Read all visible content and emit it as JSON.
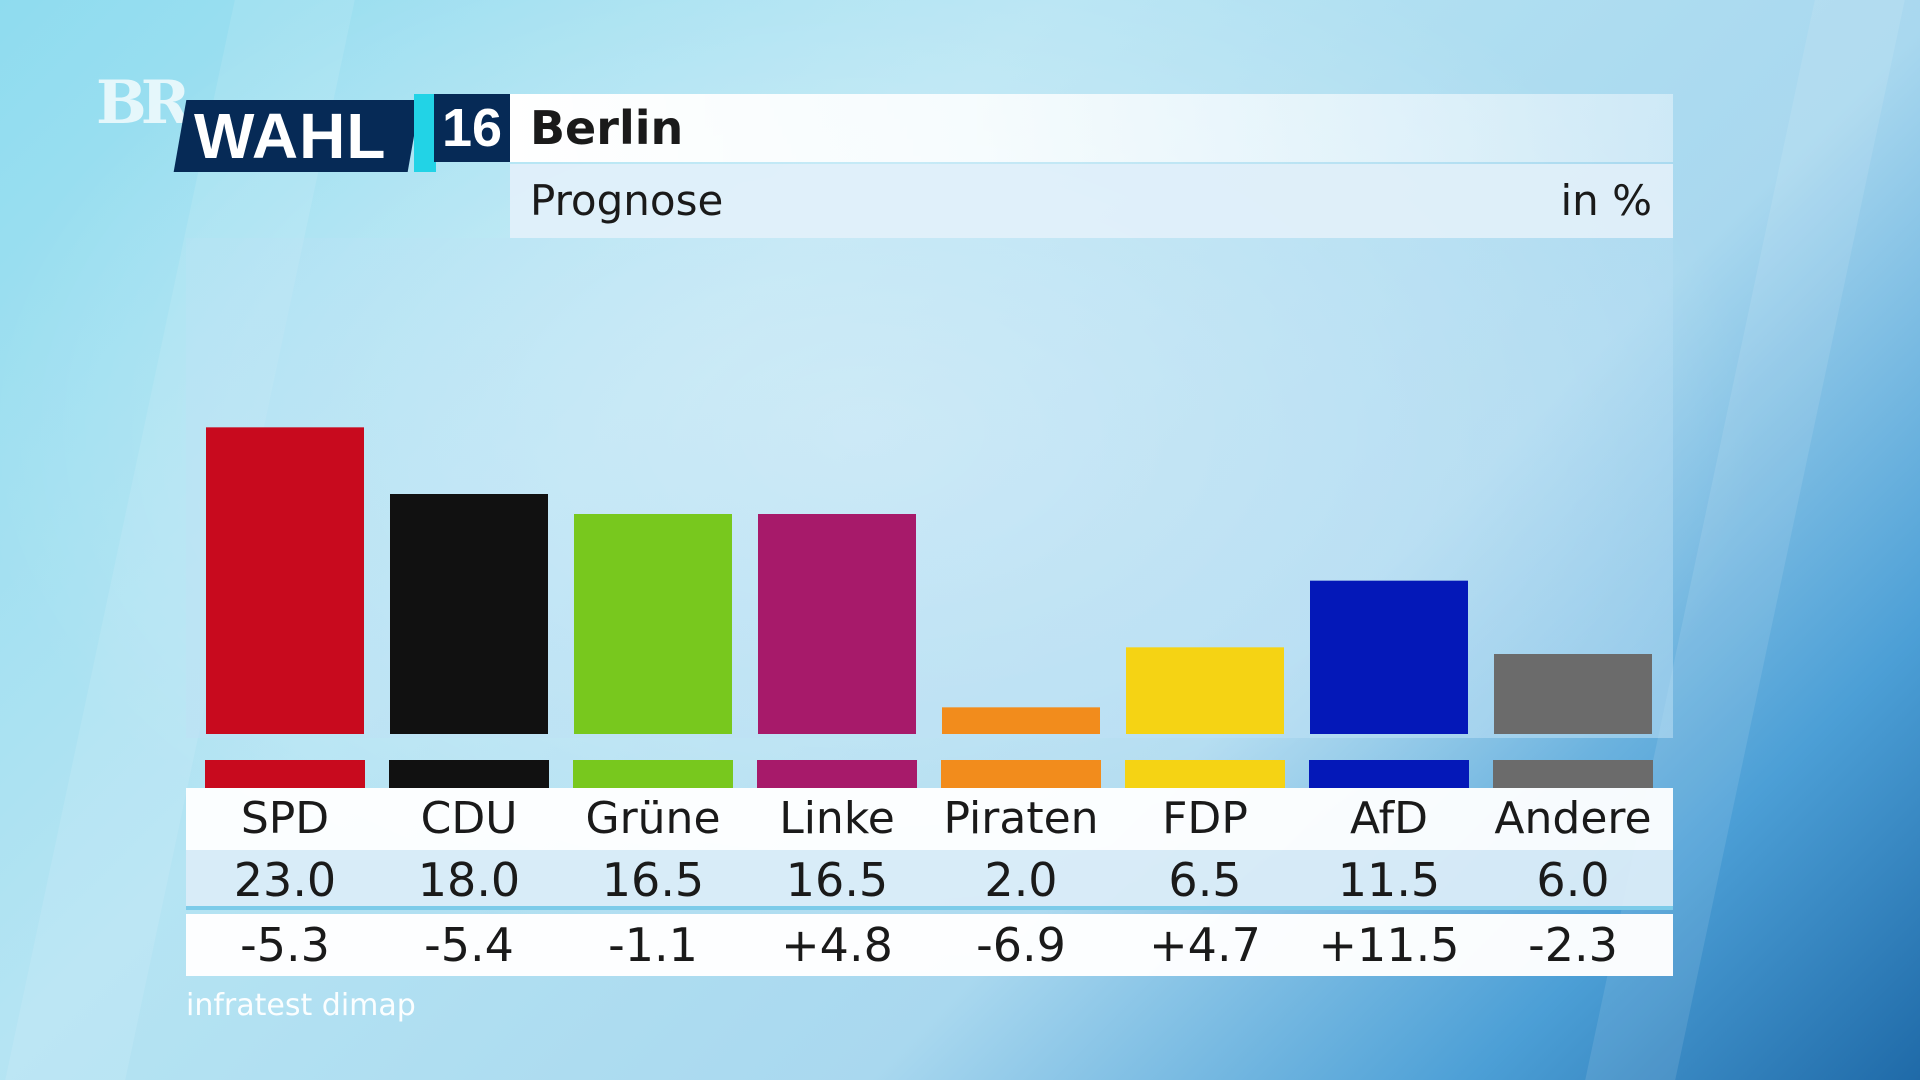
{
  "logo": "BR",
  "badge": {
    "text": "WAHL",
    "number": "16"
  },
  "title": "Berlin",
  "subtitle": "Prognose",
  "unit": "in %",
  "source": "infratest dimap",
  "chart_data": {
    "type": "bar",
    "title": "Berlin",
    "subtitle": "Prognose",
    "unit": "in %",
    "categories": [
      "SPD",
      "CDU",
      "Grüne",
      "Linke",
      "Piraten",
      "FDP",
      "AfD",
      "Andere"
    ],
    "values": [
      23.0,
      18.0,
      16.5,
      16.5,
      2.0,
      6.5,
      11.5,
      6.0
    ],
    "value_labels": [
      "23.0",
      "18.0",
      "16.5",
      "16.5",
      "2.0",
      "6.5",
      "11.5",
      "6.0"
    ],
    "changes": [
      "-5.3",
      "-5.4",
      "-1.1",
      "+4.8",
      "-6.9",
      "+4.7",
      "+11.5",
      "-2.3"
    ],
    "colors": [
      "#c80a1e",
      "#111111",
      "#78c81e",
      "#a71a6a",
      "#f28c1c",
      "#f5d314",
      "#0418b8",
      "#6b6b6b"
    ],
    "ylim": [
      0,
      30
    ],
    "grid": false
  }
}
